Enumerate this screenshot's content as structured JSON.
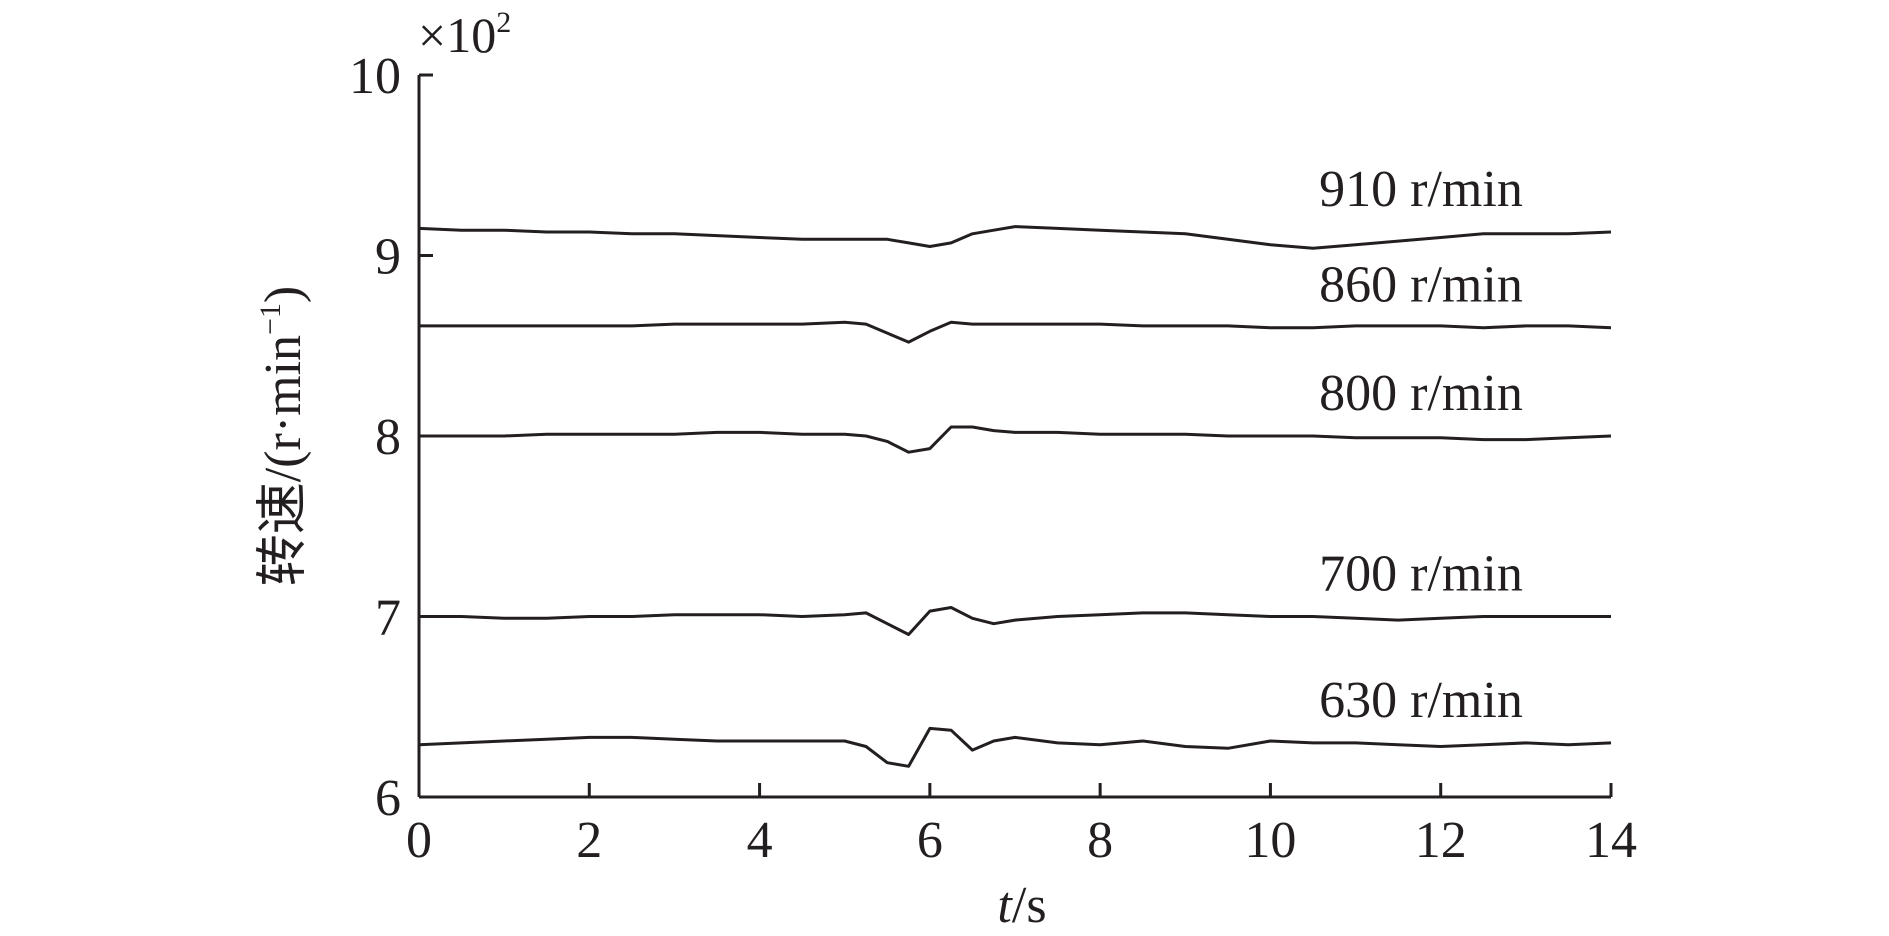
{
  "chart_data": {
    "type": "line",
    "y_multiplier": "×10",
    "y_multiplier_exp": "2",
    "y_label": "转速/(r·min",
    "y_label_exp": "−1",
    "y_label_end": ")",
    "x_label_var": "t",
    "x_label_unit": "/s",
    "x": [
      0,
      0.5,
      1,
      1.5,
      2,
      2.5,
      3,
      3.5,
      4,
      4.5,
      5,
      5.25,
      5.5,
      5.75,
      6,
      6.25,
      6.5,
      6.75,
      7,
      7.5,
      8,
      8.5,
      9,
      9.5,
      10,
      10.5,
      11,
      11.5,
      12,
      12.5,
      13,
      13.5,
      14
    ],
    "xlim": [
      0,
      14
    ],
    "xticks": [
      0,
      2,
      4,
      6,
      8,
      10,
      12,
      14
    ],
    "ylim": [
      6,
      10
    ],
    "yticks": [
      6,
      7,
      8,
      9,
      10
    ],
    "grid": false,
    "series": [
      {
        "name": "910 r/min",
        "color": "#231f20",
        "values": [
          9.15,
          9.14,
          9.14,
          9.13,
          9.13,
          9.12,
          9.12,
          9.11,
          9.1,
          9.09,
          9.09,
          9.09,
          9.09,
          9.07,
          9.05,
          9.07,
          9.12,
          9.14,
          9.16,
          9.15,
          9.14,
          9.13,
          9.12,
          9.09,
          9.06,
          9.04,
          9.06,
          9.08,
          9.1,
          9.12,
          9.12,
          9.12,
          9.13
        ]
      },
      {
        "name": "860 r/min",
        "color": "#231f20",
        "values": [
          8.61,
          8.61,
          8.61,
          8.61,
          8.61,
          8.61,
          8.62,
          8.62,
          8.62,
          8.62,
          8.63,
          8.62,
          8.57,
          8.52,
          8.58,
          8.63,
          8.62,
          8.62,
          8.62,
          8.62,
          8.62,
          8.61,
          8.61,
          8.61,
          8.6,
          8.6,
          8.61,
          8.61,
          8.61,
          8.6,
          8.61,
          8.61,
          8.6
        ]
      },
      {
        "name": "800 r/min",
        "color": "#231f20",
        "values": [
          8.0,
          8.0,
          8.0,
          8.01,
          8.01,
          8.01,
          8.01,
          8.02,
          8.02,
          8.01,
          8.01,
          8.0,
          7.97,
          7.91,
          7.93,
          8.05,
          8.05,
          8.03,
          8.02,
          8.02,
          8.01,
          8.01,
          8.01,
          8.0,
          8.0,
          8.0,
          7.99,
          7.99,
          7.99,
          7.98,
          7.98,
          7.99,
          8.0
        ]
      },
      {
        "name": "700 r/min",
        "color": "#231f20",
        "values": [
          7.0,
          7.0,
          6.99,
          6.99,
          7.0,
          7.0,
          7.01,
          7.01,
          7.01,
          7.0,
          7.01,
          7.02,
          6.96,
          6.9,
          7.03,
          7.05,
          6.99,
          6.96,
          6.98,
          7.0,
          7.01,
          7.02,
          7.02,
          7.01,
          7.0,
          7.0,
          6.99,
          6.98,
          6.99,
          7.0,
          7.0,
          7.0,
          7.0
        ]
      },
      {
        "name": "630 r/min",
        "color": "#231f20",
        "values": [
          6.29,
          6.3,
          6.31,
          6.32,
          6.33,
          6.33,
          6.32,
          6.31,
          6.31,
          6.31,
          6.31,
          6.28,
          6.19,
          6.17,
          6.38,
          6.37,
          6.26,
          6.31,
          6.33,
          6.3,
          6.29,
          6.31,
          6.28,
          6.27,
          6.31,
          6.3,
          6.3,
          6.29,
          6.28,
          6.29,
          6.3,
          6.29,
          6.3
        ]
      }
    ]
  }
}
